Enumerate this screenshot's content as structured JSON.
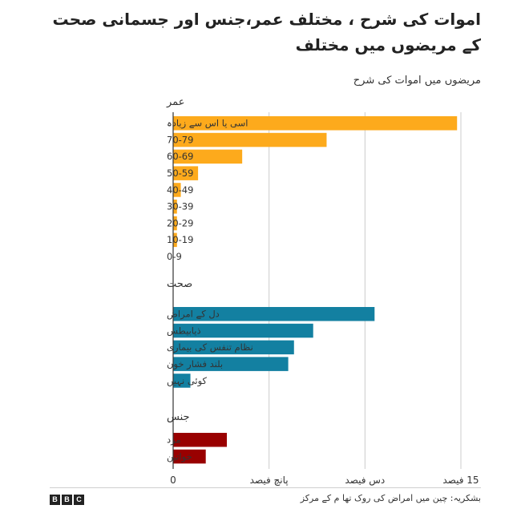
{
  "title": "اموات کی شرح ، مختلف عمر،جنس اور جسمانی صحت کے مریضوں میں مختلف",
  "subtitle": "مریضوں میں اموات کی شرح",
  "chart_data": {
    "type": "bar",
    "orientation": "horizontal",
    "xlim": [
      0,
      15
    ],
    "x_ticks": [
      {
        "value": 0,
        "label": "0"
      },
      {
        "value": 5,
        "label": "پانچ فیصد"
      },
      {
        "value": 10,
        "label": "دس فیصد"
      },
      {
        "value": 15,
        "label": "15 فیصد"
      }
    ],
    "groups": [
      {
        "name": "عمر",
        "color": "#fdaa1c",
        "categories": [
          "اسی یا اس سے زیادہ",
          "70-79",
          "60-69",
          "50-59",
          "40-49",
          "30-39",
          "20-29",
          "10-19",
          "0-9"
        ],
        "values": [
          14.8,
          8.0,
          3.6,
          1.3,
          0.4,
          0.2,
          0.2,
          0.2,
          0
        ]
      },
      {
        "name": "صحت",
        "color": "#1380a1",
        "categories": [
          "دل کے امراض",
          "ذیابیطس",
          "نظام تنفس کی بیماری",
          "بلند فشار خون",
          "کوئی نہیں"
        ],
        "values": [
          10.5,
          7.3,
          6.3,
          6.0,
          0.9
        ]
      },
      {
        "name": "جنس",
        "color": "#990000",
        "categories": [
          "مرد",
          "خواتین"
        ],
        "values": [
          2.8,
          1.7
        ]
      }
    ]
  },
  "footer": {
    "logo": [
      "B",
      "B",
      "C"
    ],
    "source": "بشکریہ: چین میں امراض کی روک تھا م کے مرکز"
  },
  "colors": {
    "axis": "#333333",
    "grid": "#cccccc"
  }
}
